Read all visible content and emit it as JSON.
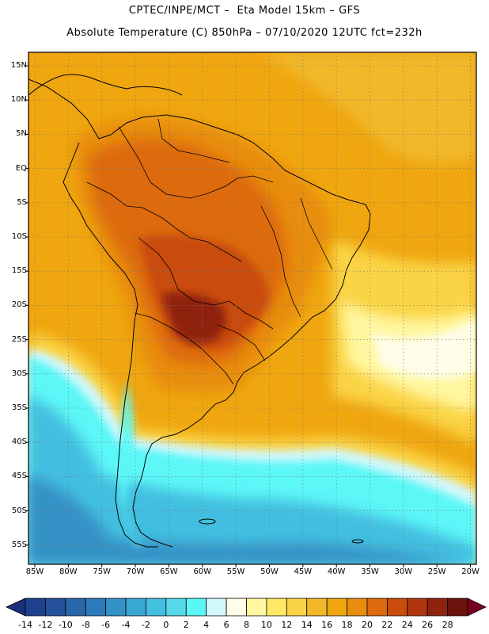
{
  "header": {
    "line1": "CPTEC/INPE/MCT –  Eta Model 15km – GFS",
    "line2": "Absolute Temperature (C) 850hPa – 07/10/2020 12UTC fct=232h"
  },
  "map": {
    "lat_labels": [
      "15N",
      "10N",
      "5N",
      "EQ",
      "5S",
      "10S",
      "15S",
      "20S",
      "25S",
      "30S",
      "35S",
      "40S",
      "45S",
      "50S",
      "55S"
    ],
    "lon_labels": [
      "85W",
      "80W",
      "75W",
      "70W",
      "65W",
      "60W",
      "55W",
      "50W",
      "45W",
      "40W",
      "35W",
      "30W",
      "25W",
      "20W"
    ]
  },
  "colorbar": {
    "labels": [
      "-14",
      "-12",
      "-10",
      "-8",
      "-6",
      "-4",
      "-2",
      "0",
      "2",
      "4",
      "6",
      "8",
      "10",
      "12",
      "14",
      "16",
      "18",
      "20",
      "22",
      "24",
      "26",
      "28"
    ],
    "colors": [
      "#1f3f8f",
      "#24509a",
      "#2a66ab",
      "#2e7bbb",
      "#3492c6",
      "#3aa8d4",
      "#43bfe0",
      "#55d8ea",
      "#5bf7f7",
      "#d2f7fb",
      "#fffde8",
      "#fff7a0",
      "#ffe866",
      "#fad445",
      "#f1b82a",
      "#efa60f",
      "#e88d10",
      "#dd6a0e",
      "#c94c0c",
      "#b0360d",
      "#8f230f",
      "#6a120b"
    ],
    "under_color": "#1c2f7a",
    "over_color": "#7a001f"
  }
}
